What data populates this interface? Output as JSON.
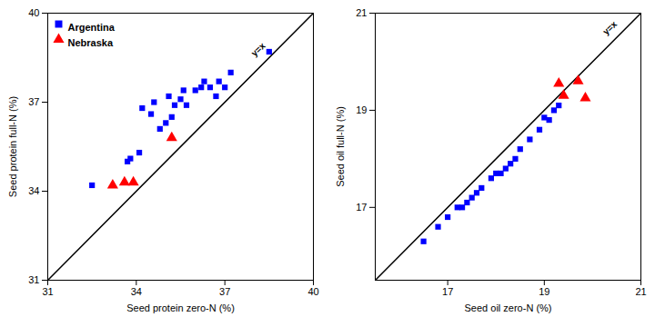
{
  "chart_data": [
    {
      "type": "scatter",
      "xlabel": "Seed protein zero-N (%)",
      "ylabel": "Seed protein full-N (%)",
      "xlim": [
        31,
        40
      ],
      "ylim": [
        31,
        40
      ],
      "xticks": [
        31,
        34,
        37,
        40
      ],
      "yticks": [
        31,
        34,
        37,
        40
      ],
      "grid": false,
      "legend": "upper left",
      "series": [
        {
          "name": "Argentina",
          "color": "#0000FF",
          "marker": "square",
          "x": [
            32.5,
            33.7,
            33.8,
            34.1,
            34.2,
            34.5,
            34.6,
            34.8,
            35.0,
            35.1,
            35.2,
            35.3,
            35.5,
            35.6,
            35.7,
            36.0,
            36.2,
            36.3,
            36.5,
            36.7,
            36.8,
            37.0,
            37.2,
            38.5
          ],
          "values": [
            34.2,
            35.0,
            35.1,
            35.3,
            36.8,
            36.6,
            37.0,
            36.1,
            36.3,
            37.2,
            36.5,
            36.9,
            37.1,
            37.4,
            36.9,
            37.4,
            37.5,
            37.7,
            37.5,
            37.2,
            37.7,
            37.5,
            38.0,
            38.7
          ]
        },
        {
          "name": "Nebraska",
          "color": "#FF0000",
          "marker": "triangle",
          "x": [
            33.2,
            33.6,
            33.9,
            35.2
          ],
          "values": [
            34.2,
            34.3,
            34.3,
            35.8
          ]
        },
        {
          "type": "line",
          "color": "#000000",
          "line_style": "solid",
          "x": [
            31,
            40
          ],
          "values": [
            31,
            40
          ]
        }
      ],
      "annotations": [
        {
          "text": "y=x",
          "x": 38.2,
          "y": 38.7
        }
      ]
    },
    {
      "type": "scatter",
      "xlabel": "Seed oil zero-N (%)",
      "ylabel": "Seed oil full-N (%)",
      "xlim": [
        15.5,
        21
      ],
      "ylim": [
        15.5,
        21
      ],
      "xticks": [
        17,
        19,
        21
      ],
      "yticks": [
        17,
        19,
        21
      ],
      "grid": false,
      "series": [
        {
          "color": "#0000FF",
          "marker": "square",
          "x": [
            16.5,
            16.8,
            17.0,
            17.2,
            17.3,
            17.4,
            17.5,
            17.6,
            17.7,
            17.9,
            18.0,
            18.1,
            18.2,
            18.3,
            18.4,
            18.5,
            18.7,
            18.9,
            19.0,
            19.1,
            19.2,
            19.3
          ],
          "values": [
            16.3,
            16.6,
            16.8,
            17.0,
            17.0,
            17.1,
            17.2,
            17.3,
            17.4,
            17.6,
            17.7,
            17.7,
            17.8,
            17.9,
            18.0,
            18.2,
            18.4,
            18.6,
            18.85,
            18.8,
            19.0,
            19.1
          ]
        },
        {
          "color": "#FF0000",
          "marker": "triangle",
          "x": [
            19.3,
            19.4,
            19.7,
            19.85
          ],
          "values": [
            19.55,
            19.3,
            19.6,
            19.25
          ]
        },
        {
          "type": "line",
          "color": "#000000",
          "line_style": "solid",
          "x": [
            15.5,
            21
          ],
          "values": [
            15.5,
            21
          ]
        }
      ],
      "annotations": [
        {
          "text": "y=x",
          "x": 20.4,
          "y": 20.65
        }
      ]
    }
  ]
}
